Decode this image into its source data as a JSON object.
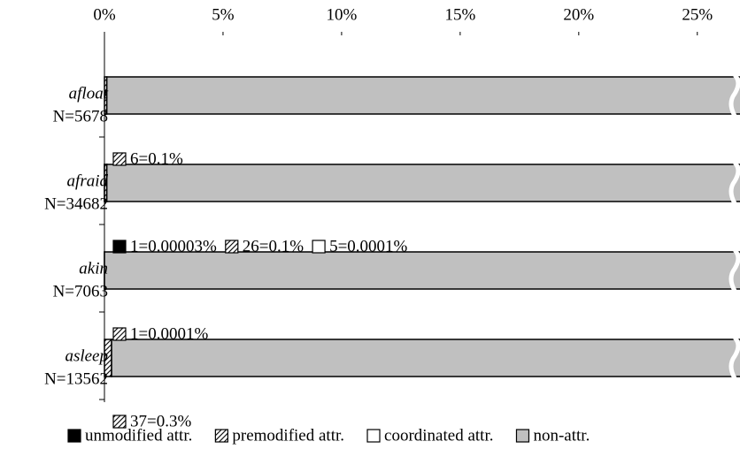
{
  "chart_data": {
    "type": "stacked-barh",
    "categories": [
      "afloat",
      "afraid",
      "akin",
      "asleep"
    ],
    "category_counts": [
      "N=5678",
      "N=34682",
      "N=7063",
      "N=13562"
    ],
    "series": [
      {
        "name": "unmodified attr.",
        "color": "#000000",
        "values": [
          null,
          3e-05,
          null,
          null
        ],
        "value_labels": [
          null,
          "1=0.00003%",
          null,
          null
        ]
      },
      {
        "name": "premodified attr.",
        "color": "#000000",
        "hatch": true,
        "values": [
          0.1,
          0.1,
          0.0001,
          0.3
        ],
        "value_labels": [
          "6=0.1%",
          "26=0.1%",
          "1=0.0001%",
          "37=0.3%"
        ]
      },
      {
        "name": "coordinated attr.",
        "color": "#ffffff",
        "values": [
          null,
          0.0001,
          null,
          null
        ],
        "value_labels": [
          null,
          "5=0.0001%",
          null,
          null
        ]
      },
      {
        "name": "non-attr.",
        "color": "#c0c0c0",
        "values": [
          99.9,
          99.8,
          99.9999,
          99.7
        ]
      }
    ],
    "xlim": [
      0,
      26.8
    ],
    "xticks": [
      {
        "value": 0,
        "label": "0%"
      },
      {
        "value": 5,
        "label": "5%"
      },
      {
        "value": 10,
        "label": "10%"
      },
      {
        "value": 15,
        "label": "15%"
      },
      {
        "value": 20,
        "label": "20%"
      },
      {
        "value": 25,
        "label": "25%"
      }
    ],
    "axis_break": true,
    "legend": "bottom"
  }
}
